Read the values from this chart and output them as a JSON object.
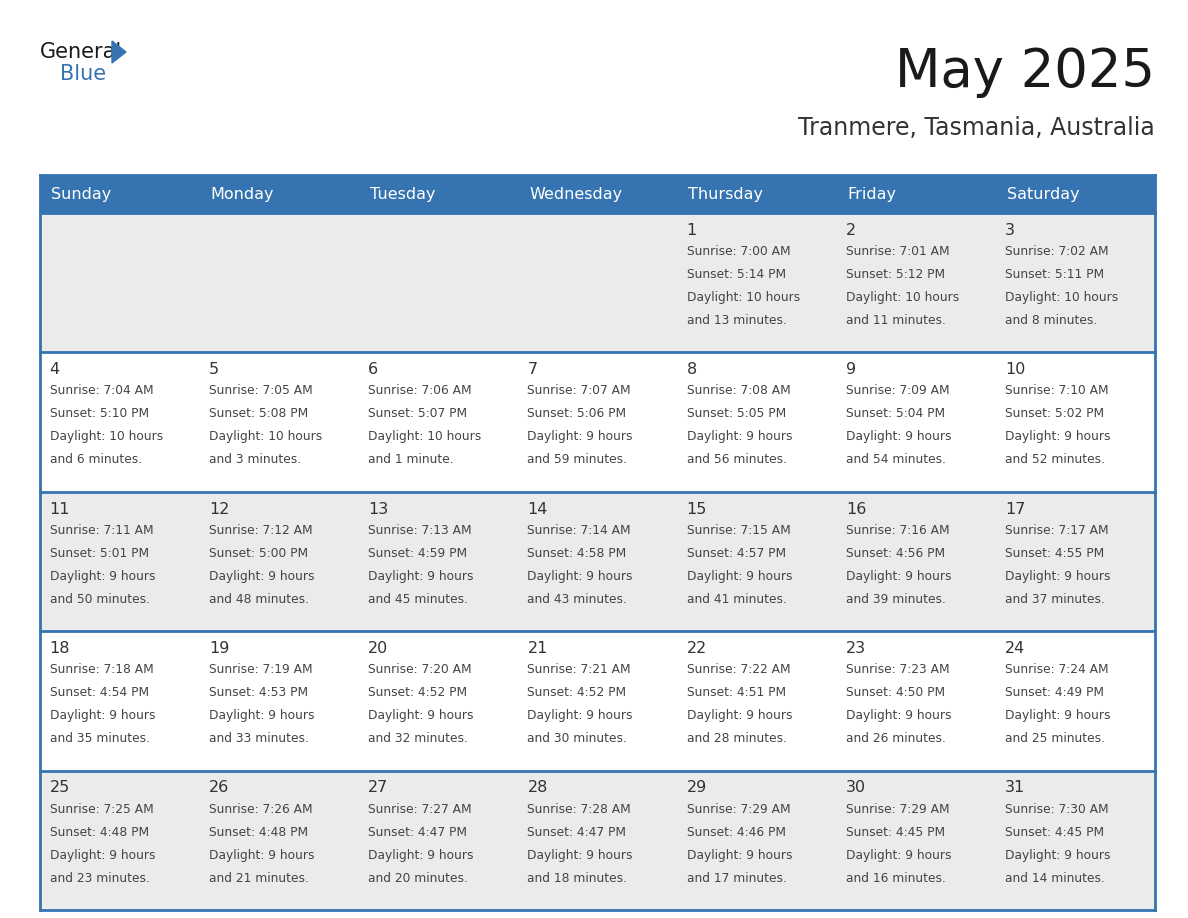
{
  "title": "May 2025",
  "subtitle": "Tranmere, Tasmania, Australia",
  "header_bg_color": "#3574b0",
  "header_text_color": "#ffffff",
  "cell_bg_color_light": "#ebebeb",
  "cell_bg_color_white": "#ffffff",
  "grid_line_color": "#3574b0",
  "day_number_color": "#333333",
  "cell_text_color": "#444444",
  "title_color": "#1a1a1a",
  "subtitle_color": "#333333",
  "days_of_week": [
    "Sunday",
    "Monday",
    "Tuesday",
    "Wednesday",
    "Thursday",
    "Friday",
    "Saturday"
  ],
  "calendar_data": [
    [
      null,
      null,
      null,
      null,
      {
        "day": 1,
        "sunrise": "7:00 AM",
        "sunset": "5:14 PM",
        "daylight_hours": "10 hours",
        "daylight_mins": "13 minutes"
      },
      {
        "day": 2,
        "sunrise": "7:01 AM",
        "sunset": "5:12 PM",
        "daylight_hours": "10 hours",
        "daylight_mins": "11 minutes"
      },
      {
        "day": 3,
        "sunrise": "7:02 AM",
        "sunset": "5:11 PM",
        "daylight_hours": "10 hours",
        "daylight_mins": "8 minutes"
      }
    ],
    [
      {
        "day": 4,
        "sunrise": "7:04 AM",
        "sunset": "5:10 PM",
        "daylight_hours": "10 hours",
        "daylight_mins": "6 minutes"
      },
      {
        "day": 5,
        "sunrise": "7:05 AM",
        "sunset": "5:08 PM",
        "daylight_hours": "10 hours",
        "daylight_mins": "3 minutes"
      },
      {
        "day": 6,
        "sunrise": "7:06 AM",
        "sunset": "5:07 PM",
        "daylight_hours": "10 hours",
        "daylight_mins": "1 minute"
      },
      {
        "day": 7,
        "sunrise": "7:07 AM",
        "sunset": "5:06 PM",
        "daylight_hours": "9 hours",
        "daylight_mins": "59 minutes"
      },
      {
        "day": 8,
        "sunrise": "7:08 AM",
        "sunset": "5:05 PM",
        "daylight_hours": "9 hours",
        "daylight_mins": "56 minutes"
      },
      {
        "day": 9,
        "sunrise": "7:09 AM",
        "sunset": "5:04 PM",
        "daylight_hours": "9 hours",
        "daylight_mins": "54 minutes"
      },
      {
        "day": 10,
        "sunrise": "7:10 AM",
        "sunset": "5:02 PM",
        "daylight_hours": "9 hours",
        "daylight_mins": "52 minutes"
      }
    ],
    [
      {
        "day": 11,
        "sunrise": "7:11 AM",
        "sunset": "5:01 PM",
        "daylight_hours": "9 hours",
        "daylight_mins": "50 minutes"
      },
      {
        "day": 12,
        "sunrise": "7:12 AM",
        "sunset": "5:00 PM",
        "daylight_hours": "9 hours",
        "daylight_mins": "48 minutes"
      },
      {
        "day": 13,
        "sunrise": "7:13 AM",
        "sunset": "4:59 PM",
        "daylight_hours": "9 hours",
        "daylight_mins": "45 minutes"
      },
      {
        "day": 14,
        "sunrise": "7:14 AM",
        "sunset": "4:58 PM",
        "daylight_hours": "9 hours",
        "daylight_mins": "43 minutes"
      },
      {
        "day": 15,
        "sunrise": "7:15 AM",
        "sunset": "4:57 PM",
        "daylight_hours": "9 hours",
        "daylight_mins": "41 minutes"
      },
      {
        "day": 16,
        "sunrise": "7:16 AM",
        "sunset": "4:56 PM",
        "daylight_hours": "9 hours",
        "daylight_mins": "39 minutes"
      },
      {
        "day": 17,
        "sunrise": "7:17 AM",
        "sunset": "4:55 PM",
        "daylight_hours": "9 hours",
        "daylight_mins": "37 minutes"
      }
    ],
    [
      {
        "day": 18,
        "sunrise": "7:18 AM",
        "sunset": "4:54 PM",
        "daylight_hours": "9 hours",
        "daylight_mins": "35 minutes"
      },
      {
        "day": 19,
        "sunrise": "7:19 AM",
        "sunset": "4:53 PM",
        "daylight_hours": "9 hours",
        "daylight_mins": "33 minutes"
      },
      {
        "day": 20,
        "sunrise": "7:20 AM",
        "sunset": "4:52 PM",
        "daylight_hours": "9 hours",
        "daylight_mins": "32 minutes"
      },
      {
        "day": 21,
        "sunrise": "7:21 AM",
        "sunset": "4:52 PM",
        "daylight_hours": "9 hours",
        "daylight_mins": "30 minutes"
      },
      {
        "day": 22,
        "sunrise": "7:22 AM",
        "sunset": "4:51 PM",
        "daylight_hours": "9 hours",
        "daylight_mins": "28 minutes"
      },
      {
        "day": 23,
        "sunrise": "7:23 AM",
        "sunset": "4:50 PM",
        "daylight_hours": "9 hours",
        "daylight_mins": "26 minutes"
      },
      {
        "day": 24,
        "sunrise": "7:24 AM",
        "sunset": "4:49 PM",
        "daylight_hours": "9 hours",
        "daylight_mins": "25 minutes"
      }
    ],
    [
      {
        "day": 25,
        "sunrise": "7:25 AM",
        "sunset": "4:48 PM",
        "daylight_hours": "9 hours",
        "daylight_mins": "23 minutes"
      },
      {
        "day": 26,
        "sunrise": "7:26 AM",
        "sunset": "4:48 PM",
        "daylight_hours": "9 hours",
        "daylight_mins": "21 minutes"
      },
      {
        "day": 27,
        "sunrise": "7:27 AM",
        "sunset": "4:47 PM",
        "daylight_hours": "9 hours",
        "daylight_mins": "20 minutes"
      },
      {
        "day": 28,
        "sunrise": "7:28 AM",
        "sunset": "4:47 PM",
        "daylight_hours": "9 hours",
        "daylight_mins": "18 minutes"
      },
      {
        "day": 29,
        "sunrise": "7:29 AM",
        "sunset": "4:46 PM",
        "daylight_hours": "9 hours",
        "daylight_mins": "17 minutes"
      },
      {
        "day": 30,
        "sunrise": "7:29 AM",
        "sunset": "4:45 PM",
        "daylight_hours": "9 hours",
        "daylight_mins": "16 minutes"
      },
      {
        "day": 31,
        "sunrise": "7:30 AM",
        "sunset": "4:45 PM",
        "daylight_hours": "9 hours",
        "daylight_mins": "14 minutes"
      }
    ]
  ]
}
